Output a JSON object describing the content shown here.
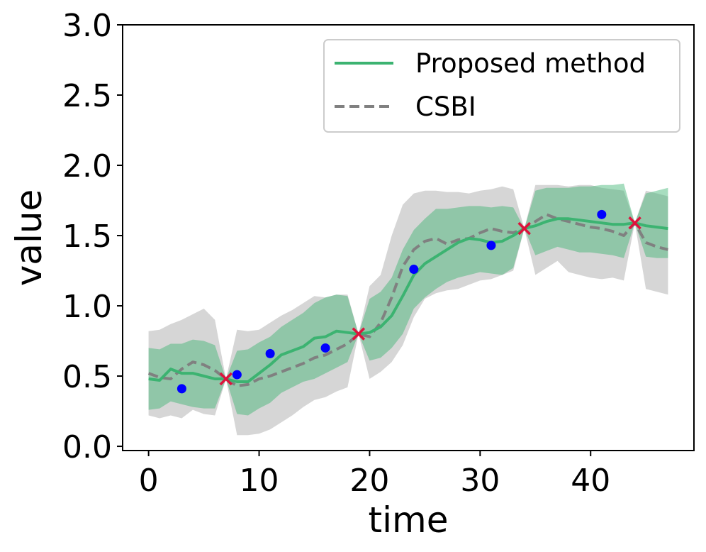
{
  "chart_data": {
    "type": "line",
    "title": "",
    "xlabel": "time",
    "ylabel": "value",
    "xlim": [
      -2.35,
      49.35
    ],
    "ylim": [
      -0.03,
      3.0
    ],
    "xticks": [
      0,
      10,
      20,
      30,
      40
    ],
    "xtick_labels": [
      "0",
      "10",
      "20",
      "30",
      "40"
    ],
    "yticks": [
      0.0,
      0.5,
      1.0,
      1.5,
      2.0,
      2.5,
      3.0
    ],
    "ytick_labels": [
      "0.0",
      "0.5",
      "1.0",
      "1.5",
      "2.0",
      "2.5",
      "3.0"
    ],
    "grid": false,
    "legend_position": "top-right",
    "colors": {
      "proposed": "#3cb371",
      "proposed_band": "#3cb371",
      "csbi": "#808080",
      "csbi_band": "#bdbdbd",
      "observed": "#0000ff",
      "conditioned": "#dc143c"
    },
    "series": [
      {
        "name": "Proposed method",
        "style": "solid",
        "x": [
          0,
          1,
          2,
          3,
          4,
          5,
          6,
          7,
          8,
          9,
          10,
          11,
          12,
          13,
          14,
          15,
          16,
          17,
          18,
          19,
          20,
          21,
          22,
          23,
          24,
          25,
          26,
          27,
          28,
          29,
          30,
          31,
          32,
          33,
          34,
          35,
          36,
          37,
          38,
          39,
          40,
          41,
          42,
          43,
          44,
          45,
          46,
          47
        ],
        "values": [
          0.48,
          0.47,
          0.55,
          0.52,
          0.52,
          0.5,
          0.48,
          0.48,
          0.46,
          0.46,
          0.52,
          0.58,
          0.65,
          0.68,
          0.71,
          0.77,
          0.78,
          0.82,
          0.81,
          0.8,
          0.81,
          0.85,
          0.93,
          1.07,
          1.22,
          1.3,
          1.35,
          1.4,
          1.45,
          1.48,
          1.47,
          1.45,
          1.46,
          1.5,
          1.55,
          1.57,
          1.6,
          1.62,
          1.62,
          1.61,
          1.6,
          1.59,
          1.58,
          1.58,
          1.59,
          1.57,
          1.56,
          1.55
        ],
        "lower": [
          0.26,
          0.27,
          0.32,
          0.3,
          0.28,
          0.27,
          0.27,
          0.48,
          0.23,
          0.22,
          0.27,
          0.31,
          0.38,
          0.42,
          0.46,
          0.48,
          0.52,
          0.56,
          0.6,
          0.8,
          0.61,
          0.63,
          0.7,
          0.8,
          0.98,
          1.06,
          1.12,
          1.17,
          1.2,
          1.22,
          1.24,
          1.23,
          1.22,
          1.27,
          1.55,
          1.36,
          1.39,
          1.42,
          1.4,
          1.38,
          1.38,
          1.37,
          1.36,
          1.34,
          1.59,
          1.35,
          1.34,
          1.34
        ],
        "upper": [
          0.7,
          0.69,
          0.73,
          0.73,
          0.76,
          0.75,
          0.72,
          0.48,
          0.68,
          0.69,
          0.74,
          0.78,
          0.85,
          0.9,
          0.95,
          1.02,
          1.06,
          1.08,
          1.07,
          0.8,
          1.05,
          1.1,
          1.2,
          1.4,
          1.54,
          1.62,
          1.69,
          1.69,
          1.7,
          1.71,
          1.71,
          1.7,
          1.71,
          1.7,
          1.55,
          1.82,
          1.84,
          1.84,
          1.84,
          1.85,
          1.85,
          1.86,
          1.86,
          1.87,
          1.59,
          1.8,
          1.82,
          1.84
        ]
      },
      {
        "name": "CSBI",
        "style": "dashed",
        "x": [
          0,
          1,
          2,
          3,
          4,
          5,
          6,
          7,
          8,
          9,
          10,
          11,
          12,
          13,
          14,
          15,
          16,
          17,
          18,
          19,
          20,
          21,
          22,
          23,
          24,
          25,
          26,
          27,
          28,
          29,
          30,
          31,
          32,
          33,
          34,
          35,
          36,
          37,
          38,
          39,
          40,
          41,
          42,
          43,
          44,
          45,
          46,
          47
        ],
        "values": [
          0.52,
          0.49,
          0.48,
          0.55,
          0.6,
          0.58,
          0.54,
          0.48,
          0.43,
          0.44,
          0.48,
          0.5,
          0.53,
          0.56,
          0.59,
          0.63,
          0.65,
          0.69,
          0.73,
          0.8,
          0.78,
          0.88,
          1.06,
          1.28,
          1.4,
          1.46,
          1.48,
          1.44,
          1.47,
          1.48,
          1.52,
          1.55,
          1.53,
          1.52,
          1.55,
          1.6,
          1.65,
          1.62,
          1.6,
          1.58,
          1.56,
          1.55,
          1.53,
          1.5,
          1.59,
          1.45,
          1.42,
          1.4
        ],
        "lower": [
          0.22,
          0.2,
          0.22,
          0.2,
          0.26,
          0.23,
          0.22,
          0.48,
          0.08,
          0.08,
          0.09,
          0.12,
          0.17,
          0.22,
          0.28,
          0.33,
          0.35,
          0.39,
          0.42,
          0.8,
          0.48,
          0.53,
          0.6,
          0.72,
          0.92,
          1.05,
          1.09,
          1.11,
          1.12,
          1.15,
          1.18,
          1.19,
          1.22,
          1.25,
          1.55,
          1.22,
          1.27,
          1.32,
          1.24,
          1.22,
          1.2,
          1.19,
          1.2,
          1.18,
          1.59,
          1.12,
          1.1,
          1.08
        ],
        "upper": [
          0.82,
          0.83,
          0.87,
          0.9,
          0.94,
          0.98,
          0.9,
          0.48,
          0.83,
          0.82,
          0.83,
          0.88,
          0.93,
          0.97,
          1.02,
          1.07,
          1.06,
          1.08,
          1.08,
          0.8,
          1.14,
          1.22,
          1.5,
          1.72,
          1.8,
          1.82,
          1.82,
          1.81,
          1.81,
          1.8,
          1.82,
          1.83,
          1.85,
          1.83,
          1.55,
          1.86,
          1.86,
          1.86,
          1.85,
          1.86,
          1.86,
          1.84,
          1.83,
          1.82,
          1.59,
          1.82,
          1.8,
          1.78
        ]
      }
    ],
    "observed_points": {
      "x": [
        3,
        8,
        11,
        16,
        24,
        31,
        41
      ],
      "y": [
        0.41,
        0.51,
        0.66,
        0.7,
        1.26,
        1.43,
        1.65
      ]
    },
    "conditioned_points": {
      "x": [
        7,
        19,
        34,
        44
      ],
      "y": [
        0.48,
        0.8,
        1.55,
        1.59
      ]
    },
    "legend": [
      "Proposed method",
      "CSBI"
    ]
  }
}
